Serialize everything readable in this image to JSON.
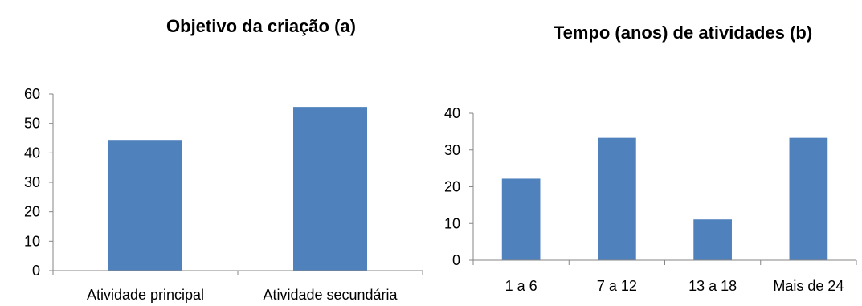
{
  "chart_data": [
    {
      "type": "bar",
      "title": "Objetivo da criação (a)",
      "categories": [
        "Atividade principal",
        "Atividade secundária"
      ],
      "values": [
        44.4,
        55.6
      ],
      "yticks": [
        "0",
        "10",
        "20",
        "30",
        "40",
        "50",
        "60"
      ],
      "ylim": [
        0,
        60
      ],
      "grid": false,
      "legend": "none",
      "bar_color": "#4F81BD"
    },
    {
      "type": "bar",
      "title": "Tempo (anos) de atividades (b)",
      "categories": [
        "1 a 6",
        "7 a 12",
        "13 a 18",
        "Mais de 24"
      ],
      "values": [
        22.2,
        33.3,
        11.1,
        33.3
      ],
      "yticks": [
        "0",
        "10",
        "20",
        "30",
        "40"
      ],
      "ylim": [
        0,
        40
      ],
      "grid": false,
      "legend": "none",
      "bar_color": "#4F81BD"
    }
  ]
}
